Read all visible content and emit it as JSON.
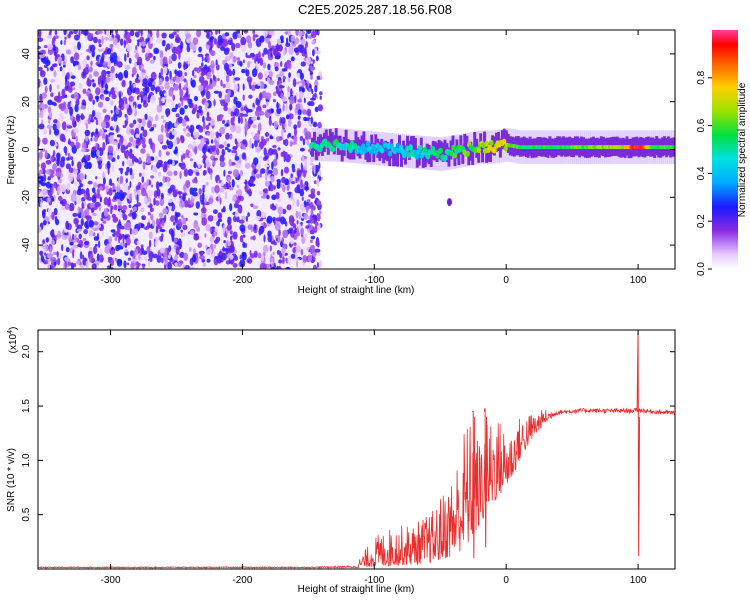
{
  "title": "C2E5.2025.287.18.56.R08",
  "colors": {
    "axis": "#000000",
    "snr_line": "#e83030",
    "noise_dot": "#7a2bd8"
  },
  "chart_data": [
    {
      "type": "heatmap",
      "name": "spectrogram",
      "xlabel": "Height of straight line (km)",
      "ylabel": "Frequency (Hz)",
      "xlim": [
        -355,
        128
      ],
      "ylim": [
        -50,
        50
      ],
      "xticks": [
        -300,
        -200,
        -100,
        0,
        100
      ],
      "xtick_labels": [
        "-300",
        "-200",
        "-100",
        "0",
        "100"
      ],
      "yticks": [
        -40,
        -20,
        0,
        20,
        40
      ],
      "ytick_labels": [
        "-40",
        "-20",
        "0",
        "20",
        "40"
      ],
      "noise_region_x": [
        -355,
        -148
      ],
      "signal_track": {
        "x": [
          -148,
          -130,
          -110,
          -90,
          -70,
          -50,
          -40,
          -30,
          -20,
          -10,
          0,
          10,
          30,
          60,
          90,
          100,
          110,
          128
        ],
        "center_hz": [
          2,
          2,
          1,
          0,
          -1,
          -2,
          -1,
          0,
          1,
          1,
          2,
          1,
          1,
          1,
          1,
          1,
          1,
          1
        ],
        "amplitude": [
          0.45,
          0.5,
          0.45,
          0.4,
          0.45,
          0.5,
          0.55,
          0.6,
          0.65,
          0.7,
          0.7,
          0.55,
          0.55,
          0.6,
          0.7,
          1.0,
          0.6,
          0.55
        ]
      },
      "annotations": [
        {
          "x": -43,
          "y": -22,
          "note": "isolated blob"
        }
      ]
    },
    {
      "type": "colorbar",
      "name": "amplitude-scale",
      "label": "Normalized spectral amplitude",
      "range": [
        0.0,
        1.0
      ],
      "ticks": [
        0.0,
        0.2,
        0.4,
        0.6,
        0.8
      ],
      "tick_labels": [
        "0.0",
        "0.2",
        "0.4",
        "0.6",
        "0.8"
      ]
    },
    {
      "type": "line",
      "name": "snr",
      "xlabel": "Height of straight line (km)",
      "ylabel": "SNR (10 * v/v)",
      "y_multiplier": "(x10",
      "y_multiplier_exp": "4",
      "y_multiplier_close": ")",
      "xlim": [
        -355,
        128
      ],
      "ylim": [
        0,
        2.2
      ],
      "xticks": [
        -300,
        -200,
        -100,
        0,
        100
      ],
      "xtick_labels": [
        "-300",
        "-200",
        "-100",
        "0",
        "100"
      ],
      "yticks": [
        0.5,
        1.0,
        1.5,
        2.0
      ],
      "ytick_labels": [
        "0.5",
        "1.0",
        "1.5",
        "2.0"
      ],
      "envelope": {
        "x": [
          -355,
          -150,
          -115,
          -100,
          -85,
          -70,
          -55,
          -40,
          -30,
          -20,
          -10,
          0,
          5,
          10,
          20,
          30,
          40,
          60,
          80,
          95,
          100,
          110,
          128
        ],
        "lo": [
          0.01,
          0.01,
          0.01,
          0.02,
          0.03,
          0.04,
          0.06,
          0.12,
          0.2,
          0.4,
          0.6,
          0.75,
          0.85,
          1.0,
          1.2,
          1.35,
          1.42,
          1.44,
          1.44,
          1.44,
          1.44,
          1.43,
          1.42
        ],
        "hi": [
          0.02,
          0.02,
          0.03,
          0.3,
          0.4,
          0.42,
          0.55,
          0.9,
          1.42,
          1.2,
          1.48,
          1.3,
          1.3,
          1.4,
          1.45,
          1.47,
          1.48,
          1.49,
          1.48,
          1.48,
          1.5,
          1.48,
          1.46
        ]
      },
      "spikes": [
        {
          "x": 100,
          "y_top": 2.2,
          "y_bottom": 0.12
        },
        {
          "x": -16,
          "y_top": 1.48,
          "y_bottom": 0.2
        },
        {
          "x": -25,
          "y_top": 1.45,
          "y_bottom": 0.1
        }
      ]
    }
  ]
}
